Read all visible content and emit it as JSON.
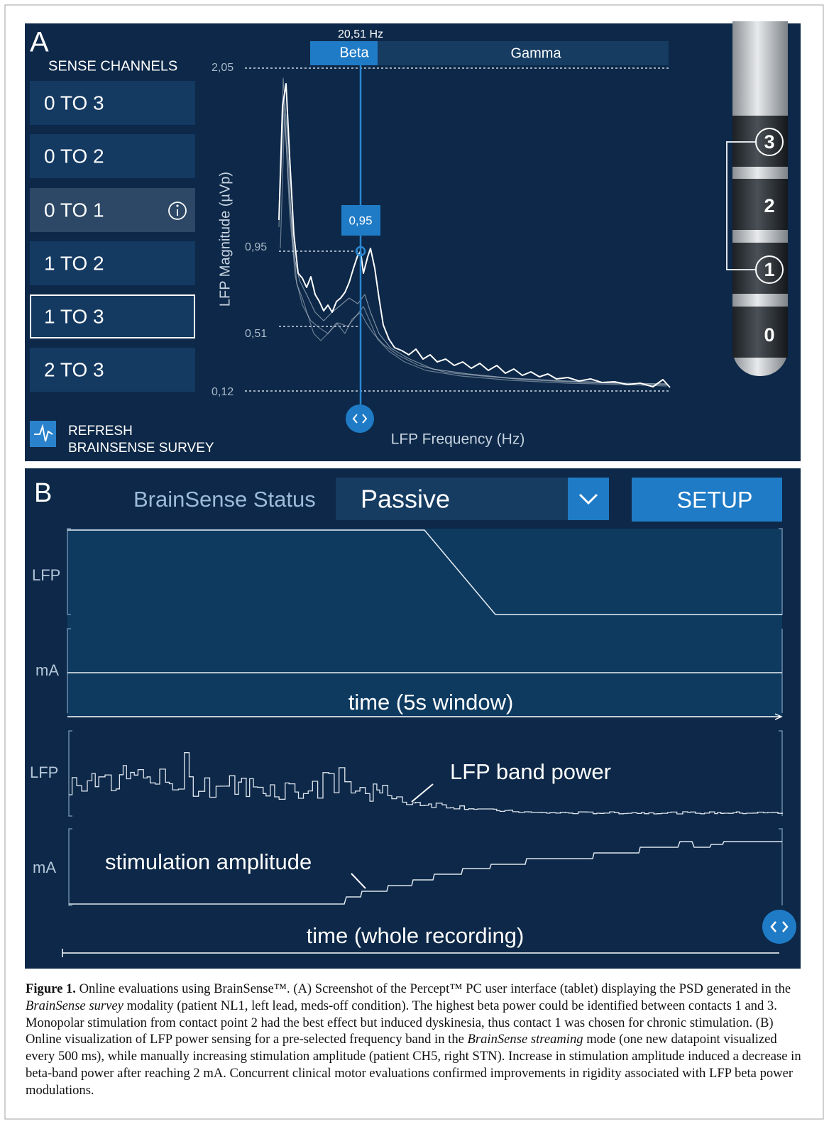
{
  "panel_a": {
    "label": "A",
    "sense_channels_title": "SENSE CHANNELS",
    "channels": [
      "0 TO 3",
      "0 TO 2",
      "0 TO 1",
      "1 TO 2",
      "1 TO 3",
      "2 TO 3"
    ],
    "refresh": [
      "REFRESH",
      "BRAINSENSE SURVEY"
    ],
    "peak_frequency": "20,51 Hz",
    "bands": [
      "Beta",
      "Gamma"
    ],
    "y_axis_label": "LFP Magnitude (µVp)",
    "x_axis_label": "LFP Frequency (Hz)",
    "y_ticks": [
      "2,05",
      "0,95",
      "0,51",
      "0,12"
    ],
    "cursor_value": "0,95",
    "contacts": [
      "3",
      "2",
      "1",
      "0"
    ]
  },
  "panel_b": {
    "label": "B",
    "status_label": "BrainSense Status",
    "status_value": "Passive",
    "setup": "SETUP",
    "window_labels": [
      "LFP",
      "mA"
    ],
    "window_time": "time (5s window)",
    "recording_labels": [
      "LFP",
      "mA"
    ],
    "band_power_note": "LFP band power",
    "amplitude_note": "stimulation amplitude",
    "recording_time": "time (whole recording)"
  },
  "caption": {
    "label": "Figure 1.",
    "segments": [
      " Online evaluations using BrainSense™. (A) Screenshot of the Percept™ PC user interface (tablet) displaying the PSD generated in the ",
      "BrainSense survey",
      " modality (patient NL1, left lead, meds-off condition). The highest beta power could be identified between contacts 1 and 3. Monopolar stimulation from contact point 2 had the best effect but induced dyskinesia, thus contact 1 was chosen for chronic stimulation. (B) Online visualization of LFP power sensing for a pre-selected frequency band in the ",
      "BrainSense streaming",
      " mode (one new datapoint visualized every 500 ms), while manually increasing stimulation amplitude (patient CH5, right STN). Increase in stimulation amplitude induced a decrease in beta-band power after reaching 2 mA. Concurrent clinical motor evaluations confirmed improvements in rigidity associated with LFP beta power modulations."
    ]
  }
}
